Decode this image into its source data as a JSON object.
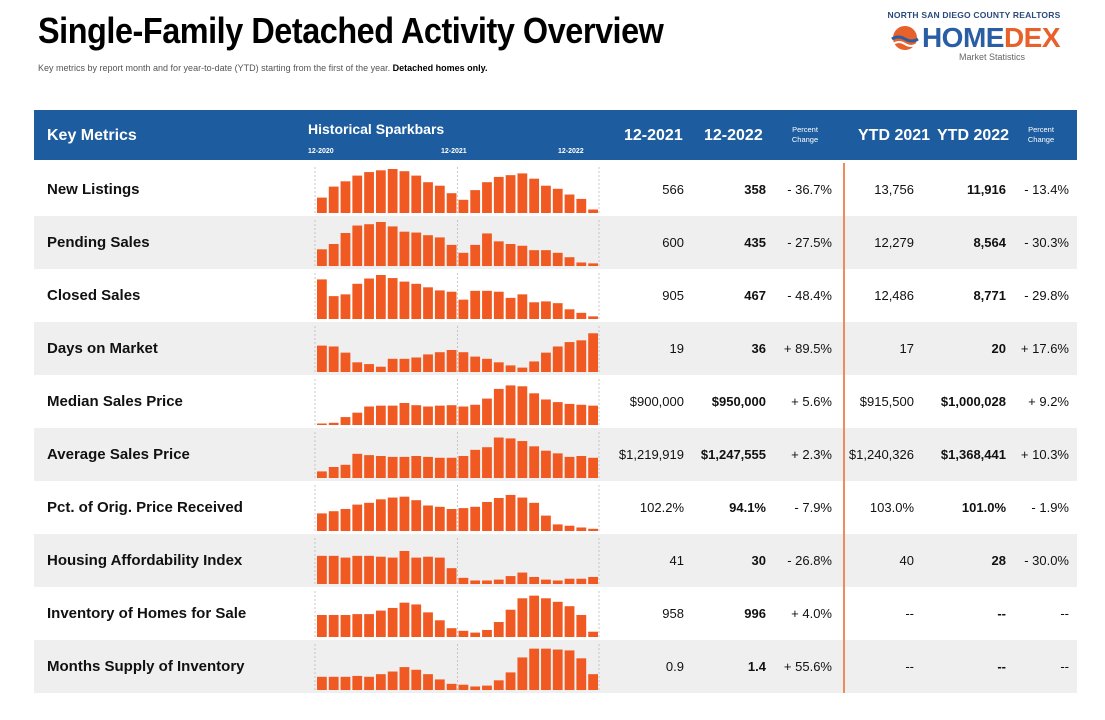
{
  "header": {
    "title": "Single-Family Detached Activity Overview",
    "subtitle_main": "Key metrics by report month and for year-to-date (YTD) starting from the first of the year.",
    "subtitle_bold": "Detached homes only."
  },
  "logo": {
    "org": "NORTH SAN DIEGO COUNTY REALTORS",
    "brand_part1": "HOME",
    "brand_part2": "DEX",
    "tagline": "Market Statistics",
    "icon": "sun-over-waves-icon"
  },
  "colors": {
    "header_bg": "#1d5c9f",
    "bar": "#f05a22",
    "divider": "#f08a5a"
  },
  "columns": {
    "key_metrics": "Key Metrics",
    "sparkbars": "Historical Sparkbars",
    "spark_ticks": [
      "12-2020",
      "12-2021",
      "12-2022"
    ],
    "m1": "12-2021",
    "m2": "12-2022",
    "pct": "Percent Change",
    "ytd1": "YTD 2021",
    "ytd2": "YTD 2022",
    "ytdpct": "Percent Change"
  },
  "rows": [
    {
      "metric": "New Listings",
      "m1": "566",
      "m2": "358",
      "pct": "- 36.7%",
      "ytd1": "13,756",
      "ytd2": "11,916",
      "ytdpct": "- 13.4%",
      "bars": [
        0.35,
        0.6,
        0.72,
        0.85,
        0.93,
        0.97,
        1.0,
        0.95,
        0.85,
        0.7,
        0.62,
        0.45,
        0.3,
        0.52,
        0.7,
        0.82,
        0.86,
        0.9,
        0.78,
        0.62,
        0.55,
        0.42,
        0.32,
        0.08
      ]
    },
    {
      "metric": "Pending Sales",
      "m1": "600",
      "m2": "435",
      "pct": "- 27.5%",
      "ytd1": "12,279",
      "ytd2": "8,564",
      "ytdpct": "- 30.3%",
      "bars": [
        0.38,
        0.5,
        0.75,
        0.92,
        0.95,
        1.0,
        0.9,
        0.78,
        0.76,
        0.7,
        0.65,
        0.48,
        0.3,
        0.48,
        0.74,
        0.56,
        0.5,
        0.46,
        0.36,
        0.36,
        0.3,
        0.2,
        0.08,
        0.06
      ]
    },
    {
      "metric": "Closed Sales",
      "m1": "905",
      "m2": "467",
      "pct": "- 48.4%",
      "ytd1": "12,486",
      "ytd2": "8,771",
      "ytdpct": "- 29.8%",
      "bars": [
        0.9,
        0.52,
        0.56,
        0.8,
        0.92,
        1.0,
        0.93,
        0.85,
        0.8,
        0.72,
        0.65,
        0.62,
        0.44,
        0.64,
        0.64,
        0.62,
        0.48,
        0.56,
        0.38,
        0.4,
        0.36,
        0.22,
        0.14,
        0.06
      ]
    },
    {
      "metric": "Days on Market",
      "m1": "19",
      "m2": "36",
      "pct": "+ 89.5%",
      "ytd1": "17",
      "ytd2": "20",
      "ytdpct": "+ 17.6%",
      "bars": [
        0.6,
        0.58,
        0.44,
        0.22,
        0.18,
        0.12,
        0.3,
        0.3,
        0.33,
        0.4,
        0.45,
        0.5,
        0.45,
        0.35,
        0.3,
        0.22,
        0.15,
        0.1,
        0.24,
        0.44,
        0.58,
        0.68,
        0.72,
        0.88
      ]
    },
    {
      "metric": "Median Sales Price",
      "m1": "$900,000",
      "m2": "$950,000",
      "pct": "+ 5.6%",
      "ytd1": "$915,500",
      "ytd2": "$1,000,028",
      "ytdpct": "+ 9.2%",
      "bars": [
        0.03,
        0.05,
        0.18,
        0.28,
        0.42,
        0.44,
        0.44,
        0.5,
        0.45,
        0.42,
        0.44,
        0.45,
        0.42,
        0.46,
        0.6,
        0.82,
        0.9,
        0.88,
        0.72,
        0.58,
        0.52,
        0.48,
        0.46,
        0.44
      ]
    },
    {
      "metric": "Average Sales Price",
      "m1": "$1,219,919",
      "m2": "$1,247,555",
      "pct": "+ 2.3%",
      "ytd1": "$1,240,326",
      "ytd2": "$1,368,441",
      "ytdpct": "+ 10.3%",
      "bars": [
        0.15,
        0.25,
        0.3,
        0.55,
        0.52,
        0.5,
        0.48,
        0.48,
        0.5,
        0.48,
        0.46,
        0.46,
        0.5,
        0.64,
        0.7,
        0.92,
        0.9,
        0.84,
        0.72,
        0.62,
        0.56,
        0.48,
        0.5,
        0.46
      ]
    },
    {
      "metric": "Pct. of Orig. Price Received",
      "m1": "102.2%",
      "m2": "94.1%",
      "pct": "- 7.9%",
      "ytd1": "103.0%",
      "ytd2": "101.0%",
      "ytdpct": "- 1.9%",
      "bars": [
        0.4,
        0.45,
        0.5,
        0.6,
        0.64,
        0.72,
        0.76,
        0.78,
        0.7,
        0.58,
        0.55,
        0.5,
        0.52,
        0.55,
        0.66,
        0.75,
        0.82,
        0.76,
        0.64,
        0.35,
        0.15,
        0.12,
        0.08,
        0.05
      ]
    },
    {
      "metric": "Housing Affordability Index",
      "m1": "41",
      "m2": "30",
      "pct": "- 26.8%",
      "ytd1": "40",
      "ytd2": "28",
      "ytdpct": "- 30.0%",
      "bars": [
        0.64,
        0.64,
        0.6,
        0.64,
        0.64,
        0.62,
        0.6,
        0.75,
        0.6,
        0.62,
        0.6,
        0.36,
        0.14,
        0.08,
        0.08,
        0.1,
        0.18,
        0.26,
        0.16,
        0.1,
        0.08,
        0.12,
        0.12,
        0.16
      ]
    },
    {
      "metric": "Inventory of Homes for Sale",
      "m1": "958",
      "m2": "996",
      "pct": "+ 4.0%",
      "ytd1": "--",
      "ytd2": "--",
      "ytdpct": "--",
      "bars": [
        0.5,
        0.5,
        0.5,
        0.52,
        0.52,
        0.6,
        0.66,
        0.78,
        0.74,
        0.56,
        0.38,
        0.2,
        0.14,
        0.1,
        0.16,
        0.34,
        0.62,
        0.88,
        0.94,
        0.88,
        0.8,
        0.7,
        0.5,
        0.12
      ]
    },
    {
      "metric": "Months Supply of Inventory",
      "m1": "0.9",
      "m2": "1.4",
      "pct": "+ 55.6%",
      "ytd1": "--",
      "ytd2": "--",
      "ytdpct": "--",
      "bars": [
        0.3,
        0.3,
        0.3,
        0.32,
        0.3,
        0.36,
        0.42,
        0.52,
        0.46,
        0.36,
        0.24,
        0.14,
        0.12,
        0.08,
        0.1,
        0.22,
        0.4,
        0.74,
        0.94,
        0.94,
        0.92,
        0.9,
        0.72,
        0.36
      ]
    }
  ]
}
